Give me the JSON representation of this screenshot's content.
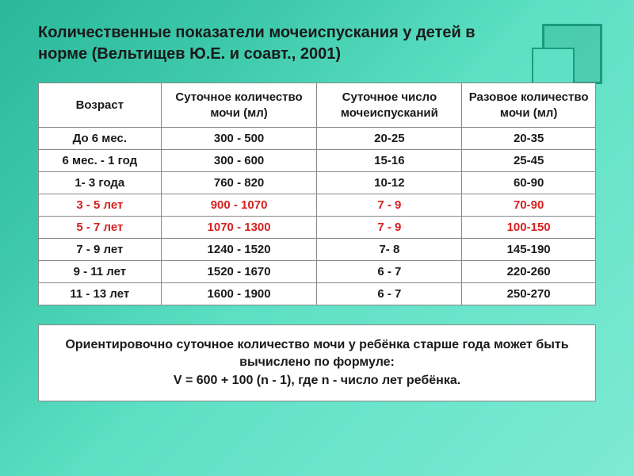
{
  "title": "Количественные показатели мочеиспускания у детей в норме (Вельтищев Ю.Е. и соавт., 2001)",
  "table": {
    "columns": [
      "Возраст",
      "Суточное количество мочи (мл)",
      "Суточное число мочеиспусканий",
      "Разовое количество мочи (мл)"
    ],
    "rows": [
      {
        "cells": [
          "До 6 мес.",
          "300 - 500",
          "20-25",
          "20-35"
        ],
        "highlight": false
      },
      {
        "cells": [
          "6 мес. - 1 год",
          "300 - 600",
          "15-16",
          "25-45"
        ],
        "highlight": false
      },
      {
        "cells": [
          "1- 3 года",
          "760 - 820",
          "10-12",
          "60-90"
        ],
        "highlight": false
      },
      {
        "cells": [
          "3 - 5 лет",
          "900 - 1070",
          "7 - 9",
          "70-90"
        ],
        "highlight": true
      },
      {
        "cells": [
          "5 - 7 лет",
          "1070 - 1300",
          "7 - 9",
          "100-150"
        ],
        "highlight": true
      },
      {
        "cells": [
          "7 - 9 лет",
          "1240 - 1520",
          "7- 8",
          "145-190"
        ],
        "highlight": false
      },
      {
        "cells": [
          "9 - 11 лет",
          "1520 - 1670",
          "6 - 7",
          "220-260"
        ],
        "highlight": false
      },
      {
        "cells": [
          "11 - 13 лет",
          "1600 - 1900",
          "6 - 7",
          "250-270"
        ],
        "highlight": false
      }
    ],
    "col_widths": [
      "22%",
      "28%",
      "26%",
      "24%"
    ],
    "border_color": "#888888",
    "highlight_color": "#d6201e",
    "text_color": "#1a1a1a",
    "background": "#ffffff"
  },
  "formula": {
    "line1": "Ориентировочно суточное количество мочи у ребёнка старше года может быть вычислено по формуле:",
    "line2": "V = 600 + 100 (n - 1), где n - число лет ребёнка."
  },
  "style": {
    "title_fontsize": 20,
    "table_fontsize": 15,
    "formula_fontsize": 16,
    "bg_gradient": [
      "#2bb89a",
      "#3ec9ab",
      "#5de0c3",
      "#7eead4"
    ]
  }
}
